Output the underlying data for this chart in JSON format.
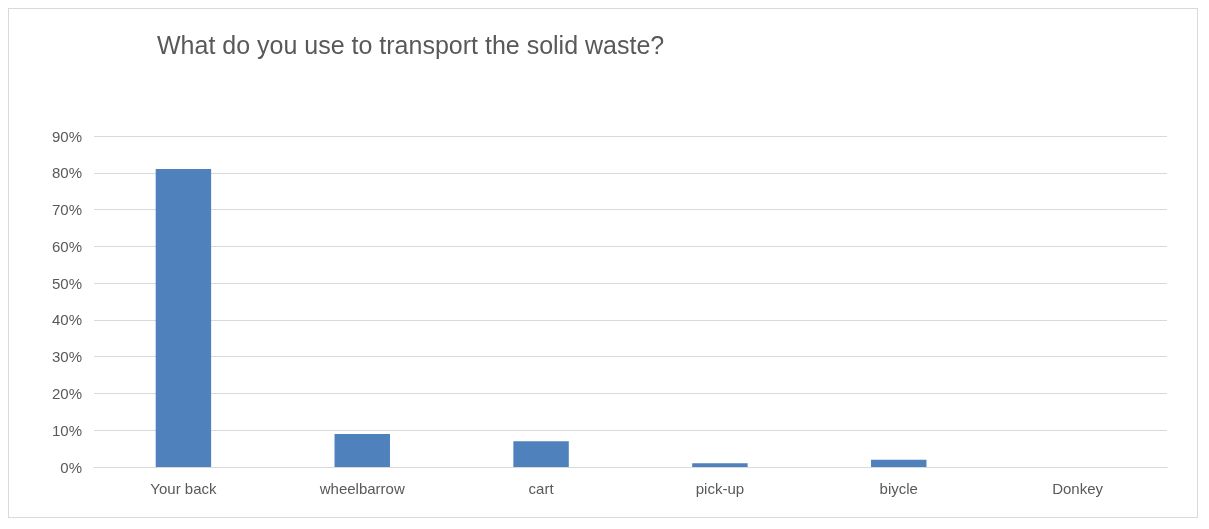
{
  "chart_data": {
    "type": "bar",
    "title": "What do you use to transport the solid waste?",
    "categories": [
      "Your back",
      "wheelbarrow",
      "cart",
      "pick-up",
      "biycle",
      "Donkey"
    ],
    "values": [
      81,
      9,
      7,
      1,
      2,
      0
    ],
    "color": "#4f81bd",
    "ylim": [
      0,
      90
    ],
    "yticks": [
      {
        "value": 0,
        "label": "0%"
      },
      {
        "value": 10,
        "label": "10%"
      },
      {
        "value": 20,
        "label": "20%"
      },
      {
        "value": 30,
        "label": "30%"
      },
      {
        "value": 40,
        "label": "40%"
      },
      {
        "value": 50,
        "label": "50%"
      },
      {
        "value": 60,
        "label": "60%"
      },
      {
        "value": 70,
        "label": "70%"
      },
      {
        "value": 80,
        "label": "80%"
      },
      {
        "value": 90,
        "label": "90%"
      }
    ],
    "grid": "y"
  }
}
